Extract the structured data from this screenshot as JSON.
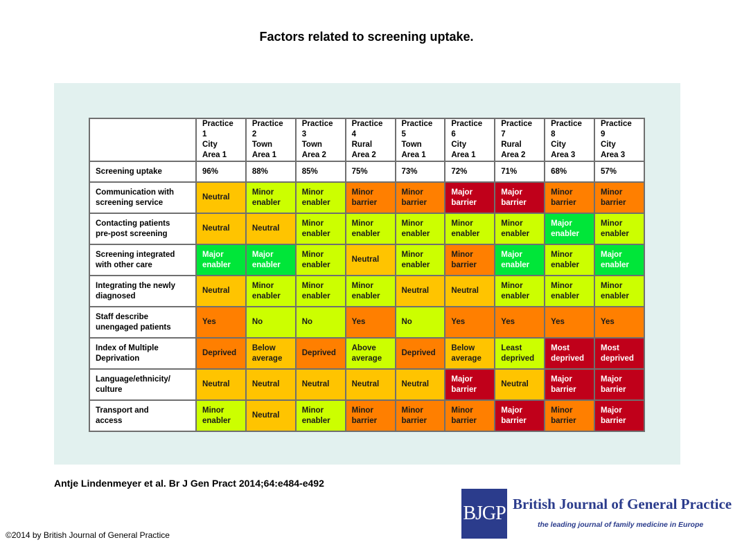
{
  "title": "Factors related to screening uptake.",
  "colors": {
    "Neutral": "#ffc400",
    "Minor enabler": "#ccff00",
    "Major enabler": "#00e639",
    "Minor barrier": "#ff7f00",
    "Major barrier": "#c0001a",
    "Yes": "#ff7f00",
    "No": "#ccff00",
    "Deprived": "#ff7f00",
    "Below average": "#ffc400",
    "Above average": "#ccff00",
    "Least deprived": "#ccff00",
    "Most deprived": "#c0001a"
  },
  "light_text_values": [
    "Major enabler",
    "Major barrier",
    "Most deprived"
  ],
  "table": {
    "practices": [
      "Practice 1\nCity\nArea 1",
      "Practice 2\nTown\nArea 1",
      "Practice 3\nTown\nArea 2",
      "Practice 4\nRural\nArea 2",
      "Practice 5\nTown\nArea 1",
      "Practice 6\nCity\nArea 1",
      "Practice 7\nRural\nArea 2",
      "Practice 8\nCity\nArea 3",
      "Practice 9\nCity\nArea 3"
    ],
    "uptake": {
      "label": "Screening uptake",
      "values": [
        "96%",
        "88%",
        "85%",
        "75%",
        "73%",
        "72%",
        "71%",
        "68%",
        "57%"
      ]
    },
    "rows": [
      {
        "label": "Communication with\nscreening service",
        "values": [
          "Neutral",
          "Minor enabler",
          "Minor enabler",
          "Minor barrier",
          "Minor barrier",
          "Major barrier",
          "Major barrier",
          "Minor barrier",
          "Minor barrier"
        ]
      },
      {
        "label": "Contacting patients\npre-post screening",
        "values": [
          "Neutral",
          "Neutral",
          "Minor enabler",
          "Minor enabler",
          "Minor enabler",
          "Minor enabler",
          "Minor enabler",
          "Major enabler",
          "Minor enabler"
        ]
      },
      {
        "label": "Screening integrated\nwith other care",
        "values": [
          "Major enabler",
          "Major enabler",
          "Minor enabler",
          "Neutral",
          "Minor enabler",
          "Minor barrier",
          "Major enabler",
          "Minor enabler",
          "Major enabler"
        ]
      },
      {
        "label": "Integrating the newly\ndiagnosed",
        "values": [
          "Neutral",
          "Minor enabler",
          "Minor enabler",
          "Minor enabler",
          "Neutral",
          "Neutral",
          "Minor enabler",
          "Minor enabler",
          "Minor enabler"
        ]
      },
      {
        "label": "Staff describe\nunengaged patients",
        "values": [
          "Yes",
          "No",
          "No",
          "Yes",
          "No",
          "Yes",
          "Yes",
          "Yes",
          "Yes"
        ]
      },
      {
        "label": "Index of Multiple\nDeprivation",
        "values": [
          "Deprived",
          "Below average",
          "Deprived",
          "Above average",
          "Deprived",
          "Below average",
          "Least deprived",
          "Most deprived",
          "Most deprived"
        ]
      },
      {
        "label": "Language/ethnicity/\nculture",
        "values": [
          "Neutral",
          "Neutral",
          "Neutral",
          "Neutral",
          "Neutral",
          "Major barrier",
          "Neutral",
          "Major barrier",
          "Major barrier"
        ]
      },
      {
        "label": "Transport and\naccess",
        "values": [
          "Minor enabler",
          "Neutral",
          "Minor enabler",
          "Minor barrier",
          "Minor barrier",
          "Minor barrier",
          "Major barrier",
          "Minor barrier",
          "Major barrier"
        ]
      }
    ]
  },
  "citation": "Antje Lindenmeyer et al. Br J Gen Pract 2014;64:e484-e492",
  "copyright": "©2014 by British Journal of General Practice",
  "logo": {
    "mark": "BJGP",
    "name": "British Journal of General Practice",
    "tagline": "the leading journal of family medicine in Europe"
  }
}
